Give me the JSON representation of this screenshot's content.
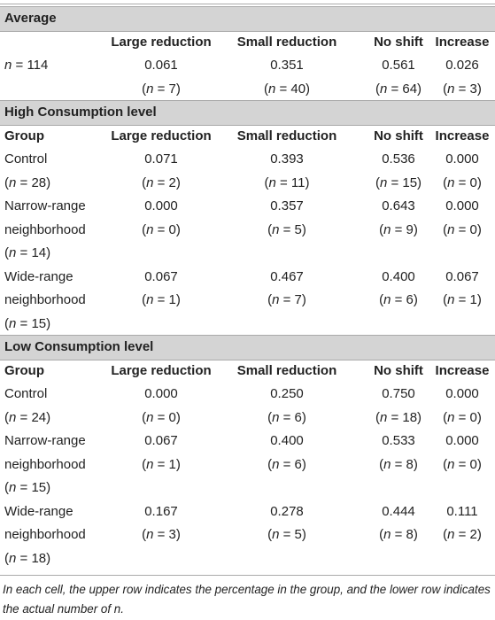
{
  "table": {
    "sections": [
      {
        "title": "Average",
        "columns": [
          "Large reduction",
          "Small reduction",
          "No shift",
          "Increase"
        ],
        "rows": [
          {
            "label": [
              "n = 114"
            ],
            "cells": [
              [
                "0.061",
                "(n = 7)"
              ],
              [
                "0.351",
                "(n = 40)"
              ],
              [
                "0.561",
                "(n = 64)"
              ],
              [
                "0.026",
                "(n = 3)"
              ]
            ]
          }
        ]
      },
      {
        "title": "High Consumption level",
        "group_label": "Group",
        "columns": [
          "Large reduction",
          "Small reduction",
          "No shift",
          "Increase"
        ],
        "rows": [
          {
            "label": [
              "Control",
              "(n = 28)"
            ],
            "cells": [
              [
                "0.071",
                "(n = 2)"
              ],
              [
                "0.393",
                "(n = 11)"
              ],
              [
                "0.536",
                "(n = 15)"
              ],
              [
                "0.000",
                "(n = 0)"
              ]
            ]
          },
          {
            "label": [
              "Narrow-range",
              "neighborhood",
              "(n = 14)"
            ],
            "cells": [
              [
                "0.000",
                "(n = 0)"
              ],
              [
                "0.357",
                "(n = 5)"
              ],
              [
                "0.643",
                "(n = 9)"
              ],
              [
                "0.000",
                "(n = 0)"
              ]
            ]
          },
          {
            "label": [
              "Wide-range",
              "neighborhood",
              "(n = 15)"
            ],
            "cells": [
              [
                "0.067",
                "(n = 1)"
              ],
              [
                "0.467",
                "(n = 7)"
              ],
              [
                "0.400",
                "(n = 6)"
              ],
              [
                "0.067",
                "(n = 1)"
              ]
            ]
          }
        ]
      },
      {
        "title": "Low Consumption level",
        "group_label": "Group",
        "columns": [
          "Large reduction",
          "Small reduction",
          "No shift",
          "Increase"
        ],
        "rows": [
          {
            "label": [
              "Control",
              "(n = 24)"
            ],
            "cells": [
              [
                "0.000",
                "(n = 0)"
              ],
              [
                "0.250",
                "(n = 6)"
              ],
              [
                "0.750",
                "(n = 18)"
              ],
              [
                "0.000",
                "(n = 0)"
              ]
            ]
          },
          {
            "label": [
              "Narrow-range",
              "neighborhood",
              "(n = 15)"
            ],
            "cells": [
              [
                "0.067",
                "(n = 1)"
              ],
              [
                "0.400",
                "(n = 6)"
              ],
              [
                "0.533",
                "(n = 8)"
              ],
              [
                "0.000",
                "(n = 0)"
              ]
            ]
          },
          {
            "label": [
              "Wide-range",
              "neighborhood",
              "(n = 18)"
            ],
            "cells": [
              [
                "0.167",
                "(n = 3)"
              ],
              [
                "0.278",
                "(n = 5)"
              ],
              [
                "0.444",
                "(n = 8)"
              ],
              [
                "0.111",
                "(n = 2)"
              ]
            ]
          }
        ]
      }
    ],
    "footnote": "In each cell, the upper row indicates the percentage in the group, and the lower row indicates the actual number of n."
  }
}
